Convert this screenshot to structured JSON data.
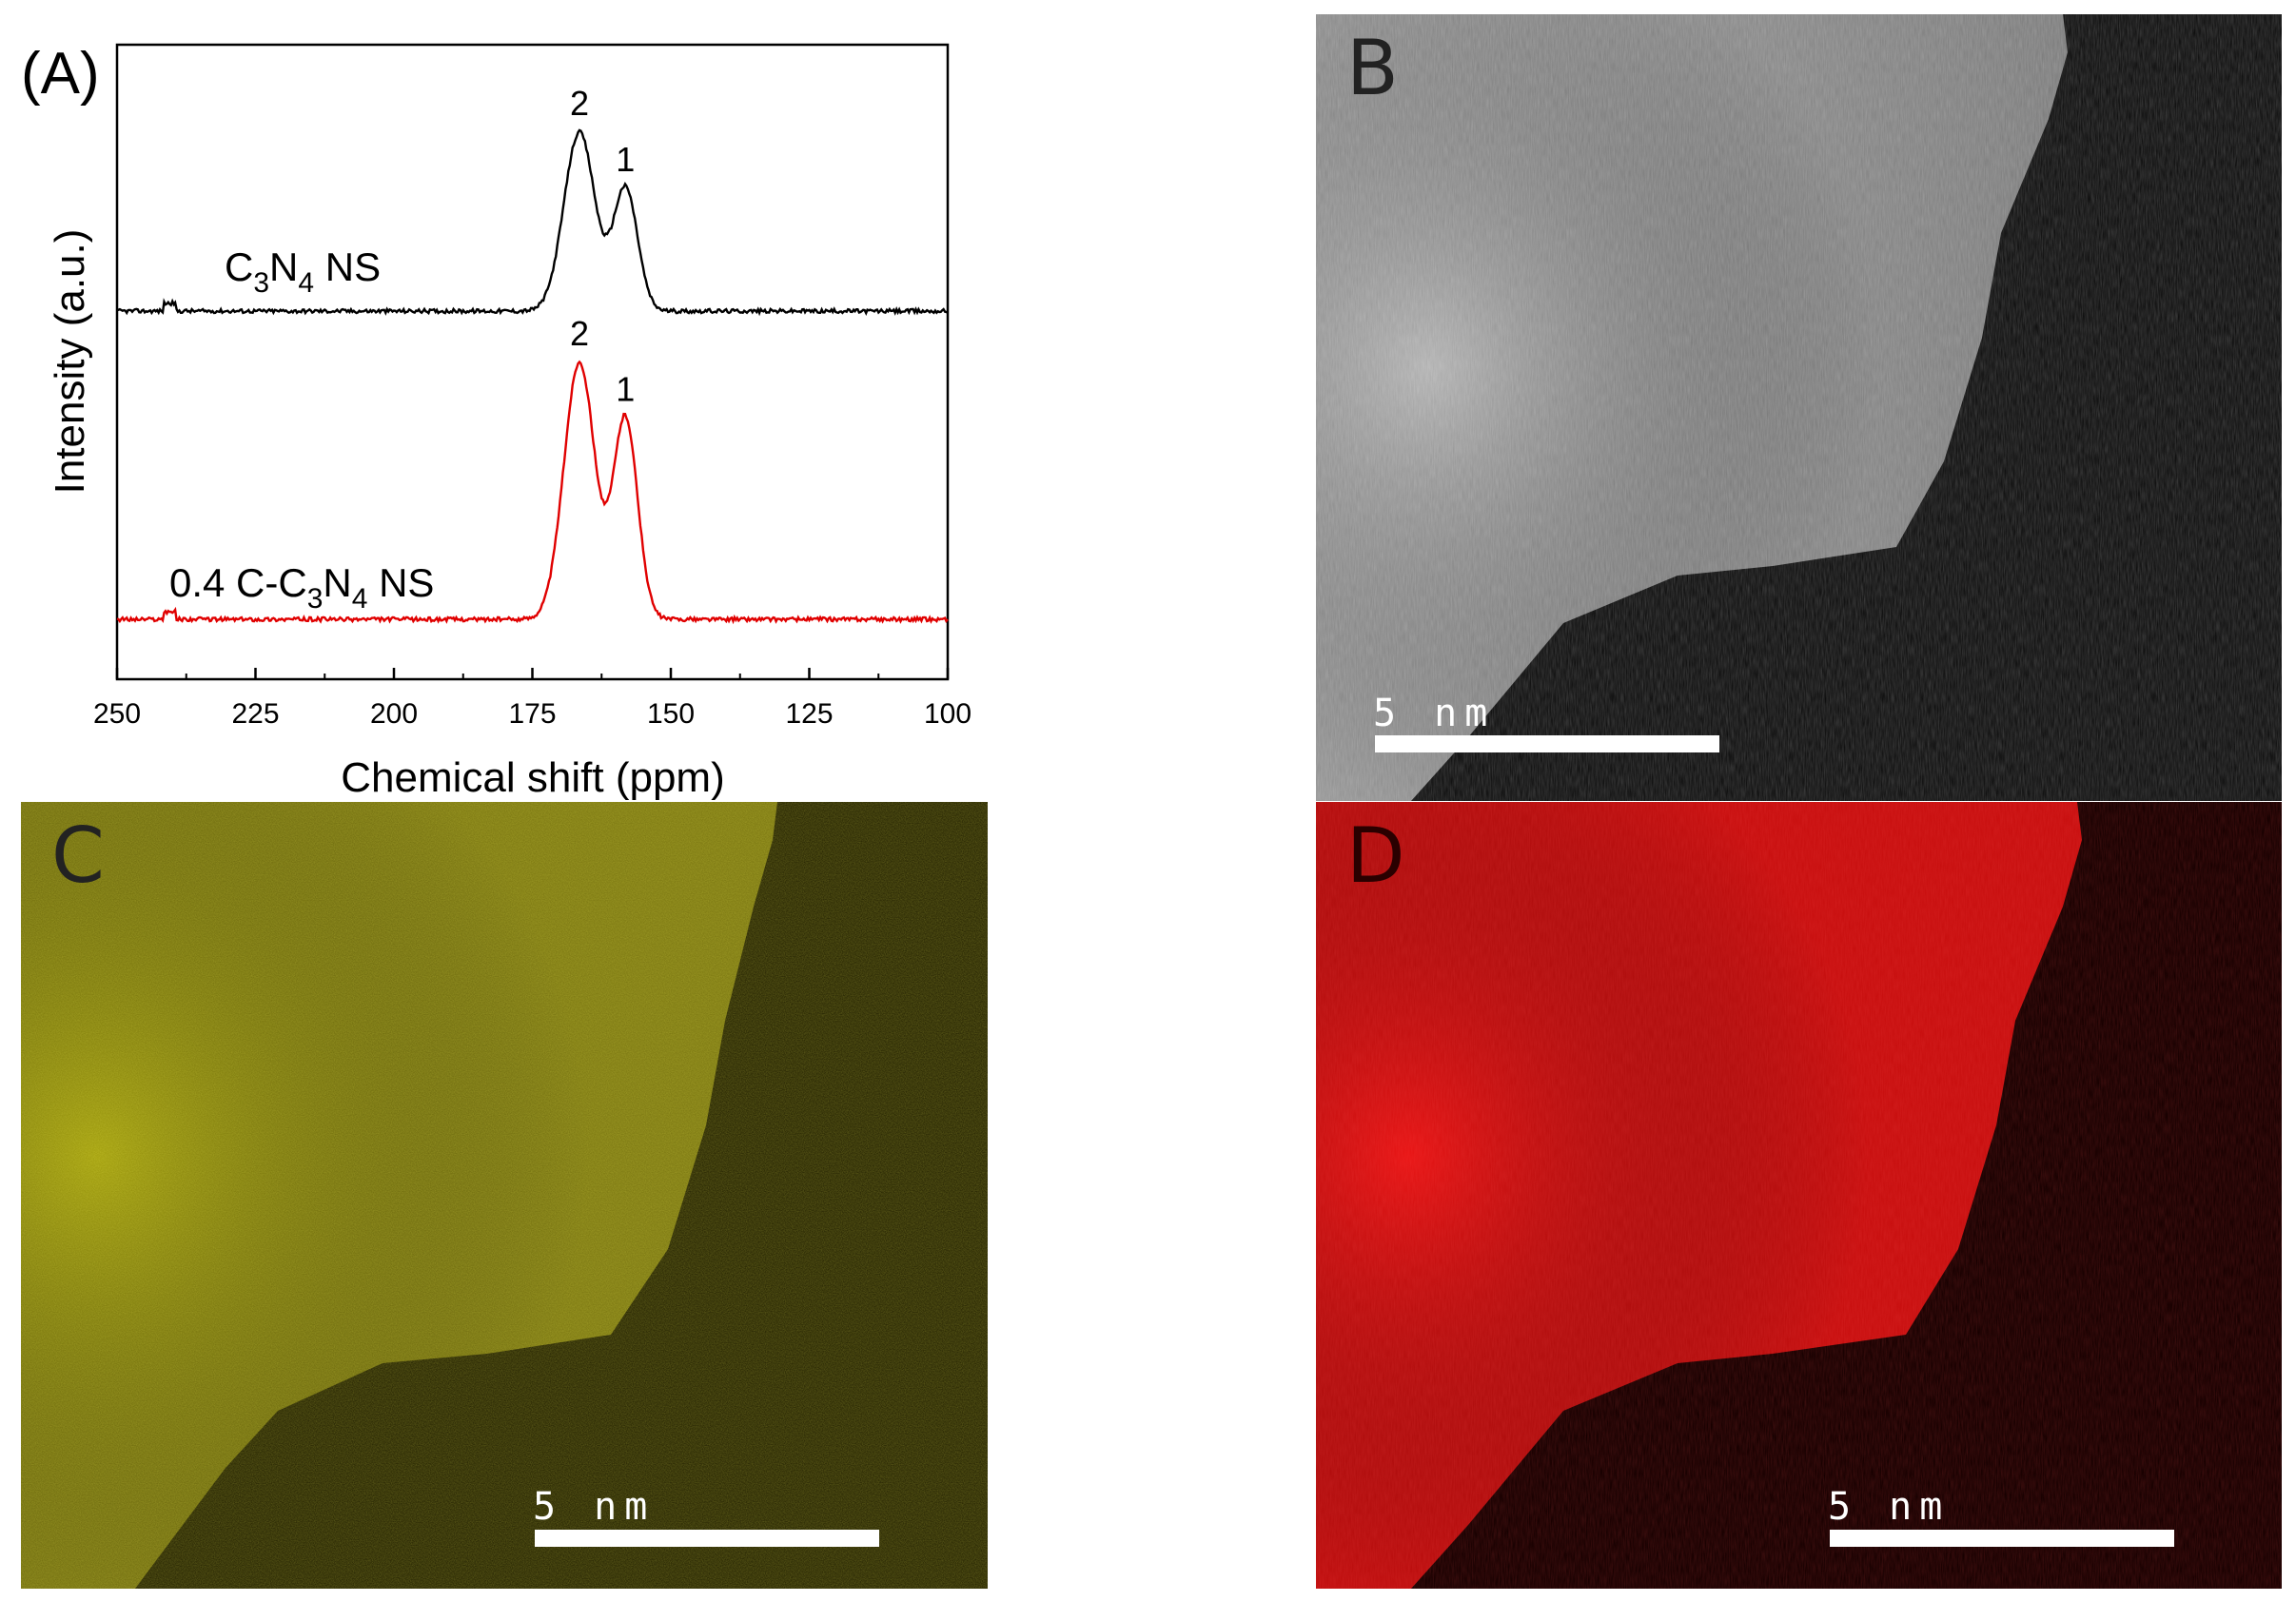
{
  "panel_a": {
    "letter": "(A)",
    "sample_upper": {
      "prefix": "C",
      "sub1": "3",
      "mid": "N",
      "sub2": "4",
      "suffix": " NS"
    },
    "sample_lower": {
      "prefix": "0.4 C-C",
      "sub1": "3",
      "mid": "N",
      "sub2": "4",
      "suffix": " NS"
    },
    "colors": {
      "upper": "#000000",
      "lower": "#e00000"
    }
  },
  "panel_b": {
    "letter": "B",
    "scale_label": "5 nm"
  },
  "panel_c": {
    "letter": "C",
    "scale_label": "5 nm"
  },
  "panel_d": {
    "letter": "D",
    "scale_label": "5 nm"
  },
  "chart_data": {
    "type": "line",
    "xlabel": "Chemical shift (ppm)",
    "ylabel": "Intensity (a.u.)",
    "xlim": [
      250,
      100
    ],
    "x_reversed": true,
    "x_ticks": [
      250,
      225,
      200,
      175,
      150,
      125,
      100
    ],
    "y_ticks": [],
    "series": [
      {
        "name": "C3N4 NS",
        "color": "#000000",
        "peaks": [
          {
            "label": "2",
            "ppm": 166.5,
            "height": 0.8,
            "width": 2.8
          },
          {
            "label": "1",
            "ppm": 158.2,
            "height": 0.55,
            "width": 2.2
          }
        ]
      },
      {
        "name": "0.4 C-C3N4 NS",
        "color": "#e00000",
        "peaks": [
          {
            "label": "2",
            "ppm": 166.5,
            "height": 1.15,
            "width": 2.8
          },
          {
            "label": "1",
            "ppm": 158.2,
            "height": 0.9,
            "width": 2.2
          }
        ]
      }
    ]
  }
}
